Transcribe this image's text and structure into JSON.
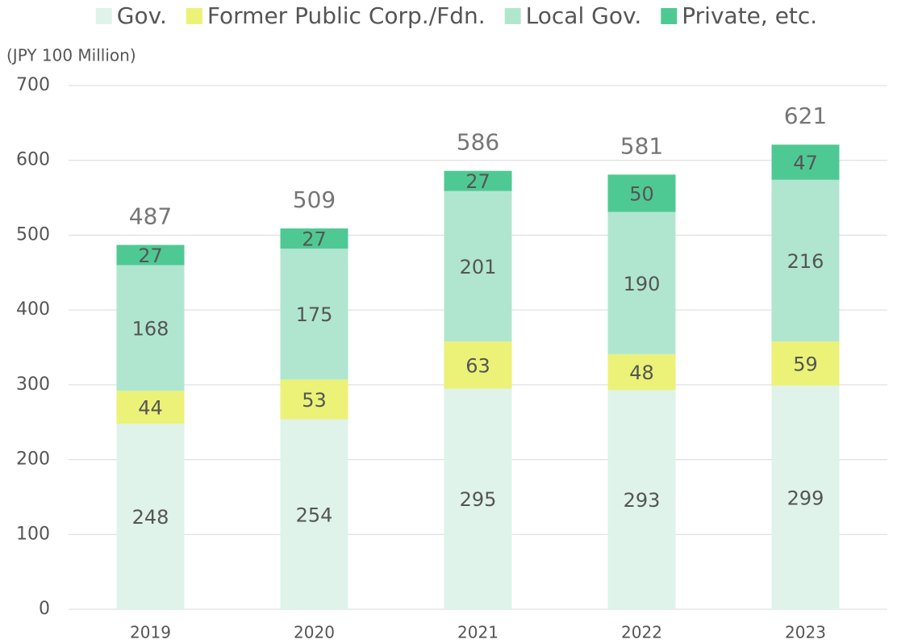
{
  "chart_data": {
    "type": "stacked_bar",
    "y_axis_label": "(JPY 100 Million)",
    "categories": [
      "2019",
      "2020",
      "2021",
      "2022",
      "2023"
    ],
    "series": [
      {
        "name": "Gov.",
        "color": "#dff3ea",
        "values": [
          248,
          254,
          295,
          293,
          299
        ]
      },
      {
        "name": "Former Public Corp./Fdn.",
        "color": "#ebf277",
        "values": [
          44,
          53,
          63,
          48,
          59
        ]
      },
      {
        "name": "Local Gov.",
        "color": "#b0e6d0",
        "values": [
          168,
          175,
          201,
          190,
          216
        ]
      },
      {
        "name": "Private, etc.",
        "color": "#4fc994",
        "values": [
          27,
          27,
          27,
          50,
          47
        ]
      }
    ],
    "totals": [
      487,
      509,
      586,
      581,
      621
    ],
    "ylim": [
      0,
      700
    ],
    "yticks": [
      0,
      100,
      200,
      300,
      400,
      500,
      600,
      700
    ],
    "grid": true,
    "legend": "top"
  }
}
